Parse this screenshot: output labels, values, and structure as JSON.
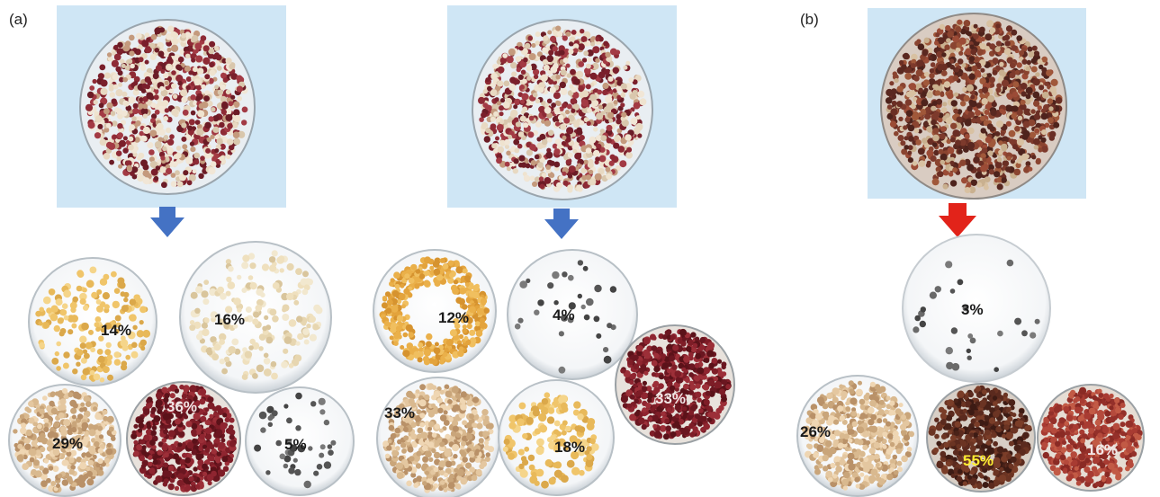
{
  "panel_labels": {
    "a": "(a)",
    "b": "(b)"
  },
  "colors": {
    "sky": "#cfe6f5",
    "arrow_blue": "#4472c4",
    "arrow_red": "#e2231a",
    "dark_text": "#1a1a1a",
    "light_text": "#f2e6e6",
    "yellow_text": "#ffee33"
  },
  "dishes": {
    "left": {
      "fractions": [
        {
          "label": "14%",
          "kind": "yellow-sparse",
          "share": 14
        },
        {
          "label": "16%",
          "kind": "cream-sparse",
          "share": 16
        },
        {
          "label": "29%",
          "kind": "beige-dense",
          "share": 29
        },
        {
          "label": "36%",
          "kind": "red-dense",
          "share": 36
        },
        {
          "label": "5%",
          "kind": "grey-sparse",
          "share": 5
        }
      ]
    },
    "middle": {
      "fractions": [
        {
          "label": "12%",
          "kind": "orange-ring",
          "share": 12
        },
        {
          "label": "4%",
          "kind": "grey-sparse",
          "share": 4
        },
        {
          "label": "33%",
          "kind": "red-dense",
          "share": 33
        },
        {
          "label": "33%",
          "kind": "beige-dense",
          "share": 33
        },
        {
          "label": "18%",
          "kind": "yellow-sparse",
          "share": 18
        }
      ]
    },
    "right": {
      "fractions": [
        {
          "label": "3%",
          "kind": "grey-sparse",
          "share": 3
        },
        {
          "label": "26%",
          "kind": "beige-dense",
          "share": 26
        },
        {
          "label": "55%",
          "kind": "brown-dense",
          "share": 55
        },
        {
          "label": "16%",
          "kind": "red-dense",
          "share": 16
        }
      ]
    }
  }
}
